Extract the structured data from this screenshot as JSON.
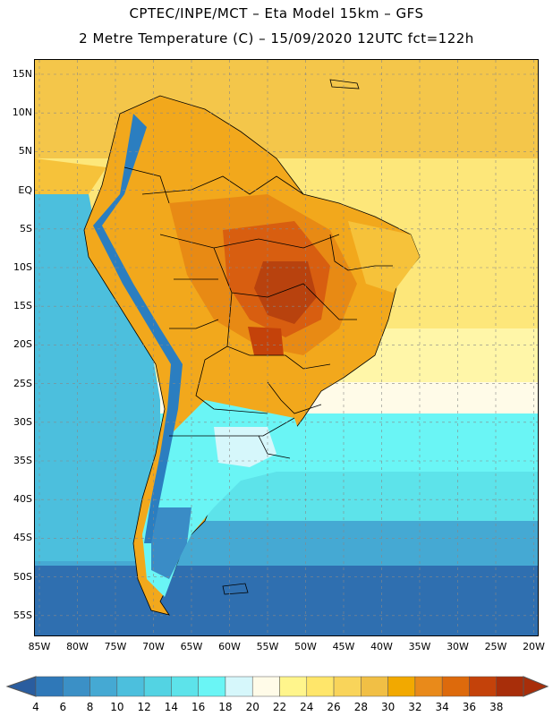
{
  "title": {
    "line1": "CPTEC/INPE/MCT –  Eta Model 15km – GFS",
    "line2": "2 Metre Temperature (C) – 15/09/2020 12UTC fct=122h"
  },
  "lat_labels": [
    "15N",
    "10N",
    "5N",
    "EQ",
    "5S",
    "10S",
    "15S",
    "20S",
    "25S",
    "30S",
    "35S",
    "40S",
    "45S",
    "50S",
    "55S"
  ],
  "lon_labels": [
    "85W",
    "80W",
    "75W",
    "70W",
    "65W",
    "60W",
    "55W",
    "50W",
    "45W",
    "40W",
    "35W",
    "30W",
    "25W",
    "20W"
  ],
  "colorbar": {
    "labels": [
      "4",
      "6",
      "8",
      "10",
      "12",
      "14",
      "16",
      "18",
      "20",
      "22",
      "24",
      "26",
      "28",
      "30",
      "32",
      "34",
      "36",
      "38"
    ],
    "colors": [
      "#2a5d9f",
      "#2f78b8",
      "#3b90c6",
      "#45a9d3",
      "#4cbfdd",
      "#53d3e3",
      "#5de3ea",
      "#6af5f5",
      "#d6f7fb",
      "#fffbe8",
      "#fff58c",
      "#ffe66a",
      "#f9d45a",
      "#f1bf45",
      "#f2a900",
      "#e98a1a",
      "#dd6a0c",
      "#c4420a",
      "#a82e0a",
      "#3a78b8"
    ]
  },
  "map": {
    "ocean_colors": {
      "north_atlantic": "#f4c64a",
      "tropical_atlantic": "#fde77a",
      "south_atlantic_warm": "#fff6a8",
      "south_atlantic_mid": "#5de3ea",
      "south_atlantic_cool": "#45a9d3",
      "south_cold": "#2f6fb0",
      "pacific": "#4cbfdd"
    },
    "land_colors": {
      "hot_core": "#b8420e",
      "very_hot": "#d85e10",
      "hot": "#e88a14",
      "warm": "#f2a81c",
      "mild": "#f6c23a",
      "andes_cold": "#2b7ec0",
      "patagonia": "#3a8cc6"
    }
  }
}
